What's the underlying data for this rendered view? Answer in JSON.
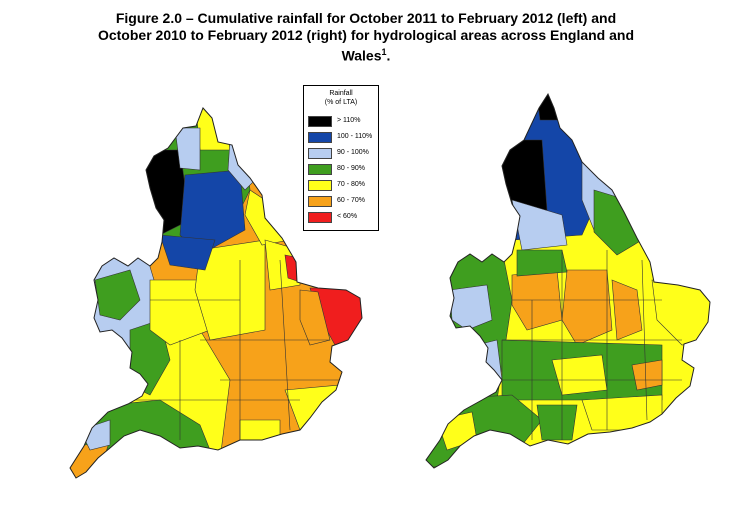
{
  "title": {
    "line1": "Figure 2.0 – Cumulative rainfall for October 2011 to February 2012 (left) and",
    "line2": "October 2010 to February 2012 (right) for hydrological areas across England and",
    "line3": "Wales",
    "footnote": "1",
    "line3_end": "."
  },
  "legend": {
    "title1": "Rainfall",
    "title2": "(% of LTA)",
    "items": [
      {
        "label": "> 110%",
        "color": "#000000"
      },
      {
        "label": "100 - 110%",
        "color": "#1446a8"
      },
      {
        "label": "90 - 100%",
        "color": "#b7cdf0"
      },
      {
        "label": "80 - 90%",
        "color": "#3f9e1f"
      },
      {
        "label": "70 - 80%",
        "color": "#ffff1a"
      },
      {
        "label": "60 - 70%",
        "color": "#f7a21a"
      },
      {
        "label": "< 60%",
        "color": "#f01e1e"
      }
    ]
  },
  "maps": [
    {
      "name": "October 2011 to February 2012",
      "region": "England and Wales"
    },
    {
      "name": "October 2010 to February 2012",
      "region": "England and Wales"
    }
  ]
}
